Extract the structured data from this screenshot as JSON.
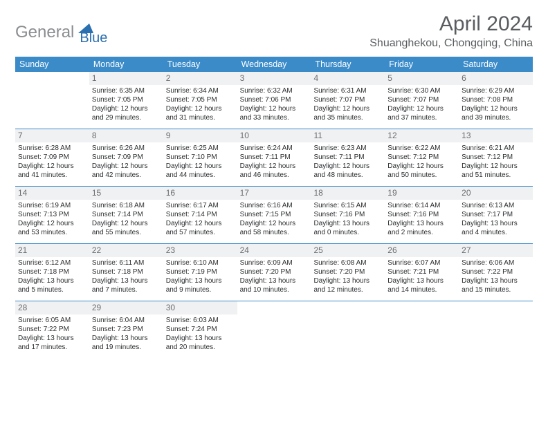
{
  "logo": {
    "first": "General",
    "second": "Blue"
  },
  "title": "April 2024",
  "location": "Shuanghekou, Chongqing, China",
  "colors": {
    "header_bg": "#3b8bc9",
    "header_text": "#ffffff",
    "daynum_bg": "#f0f1f2",
    "daynum_text": "#6a6d70",
    "body_text": "#2a2c2e",
    "title_text": "#5a5d60",
    "logo_gray": "#8a8d90",
    "logo_blue": "#2a6fb0"
  },
  "weekdays": [
    "Sunday",
    "Monday",
    "Tuesday",
    "Wednesday",
    "Thursday",
    "Friday",
    "Saturday"
  ],
  "weeks": [
    [
      null,
      {
        "n": "1",
        "sr": "Sunrise: 6:35 AM",
        "ss": "Sunset: 7:05 PM",
        "d1": "Daylight: 12 hours",
        "d2": "and 29 minutes."
      },
      {
        "n": "2",
        "sr": "Sunrise: 6:34 AM",
        "ss": "Sunset: 7:05 PM",
        "d1": "Daylight: 12 hours",
        "d2": "and 31 minutes."
      },
      {
        "n": "3",
        "sr": "Sunrise: 6:32 AM",
        "ss": "Sunset: 7:06 PM",
        "d1": "Daylight: 12 hours",
        "d2": "and 33 minutes."
      },
      {
        "n": "4",
        "sr": "Sunrise: 6:31 AM",
        "ss": "Sunset: 7:07 PM",
        "d1": "Daylight: 12 hours",
        "d2": "and 35 minutes."
      },
      {
        "n": "5",
        "sr": "Sunrise: 6:30 AM",
        "ss": "Sunset: 7:07 PM",
        "d1": "Daylight: 12 hours",
        "d2": "and 37 minutes."
      },
      {
        "n": "6",
        "sr": "Sunrise: 6:29 AM",
        "ss": "Sunset: 7:08 PM",
        "d1": "Daylight: 12 hours",
        "d2": "and 39 minutes."
      }
    ],
    [
      {
        "n": "7",
        "sr": "Sunrise: 6:28 AM",
        "ss": "Sunset: 7:09 PM",
        "d1": "Daylight: 12 hours",
        "d2": "and 41 minutes."
      },
      {
        "n": "8",
        "sr": "Sunrise: 6:26 AM",
        "ss": "Sunset: 7:09 PM",
        "d1": "Daylight: 12 hours",
        "d2": "and 42 minutes."
      },
      {
        "n": "9",
        "sr": "Sunrise: 6:25 AM",
        "ss": "Sunset: 7:10 PM",
        "d1": "Daylight: 12 hours",
        "d2": "and 44 minutes."
      },
      {
        "n": "10",
        "sr": "Sunrise: 6:24 AM",
        "ss": "Sunset: 7:11 PM",
        "d1": "Daylight: 12 hours",
        "d2": "and 46 minutes."
      },
      {
        "n": "11",
        "sr": "Sunrise: 6:23 AM",
        "ss": "Sunset: 7:11 PM",
        "d1": "Daylight: 12 hours",
        "d2": "and 48 minutes."
      },
      {
        "n": "12",
        "sr": "Sunrise: 6:22 AM",
        "ss": "Sunset: 7:12 PM",
        "d1": "Daylight: 12 hours",
        "d2": "and 50 minutes."
      },
      {
        "n": "13",
        "sr": "Sunrise: 6:21 AM",
        "ss": "Sunset: 7:12 PM",
        "d1": "Daylight: 12 hours",
        "d2": "and 51 minutes."
      }
    ],
    [
      {
        "n": "14",
        "sr": "Sunrise: 6:19 AM",
        "ss": "Sunset: 7:13 PM",
        "d1": "Daylight: 12 hours",
        "d2": "and 53 minutes."
      },
      {
        "n": "15",
        "sr": "Sunrise: 6:18 AM",
        "ss": "Sunset: 7:14 PM",
        "d1": "Daylight: 12 hours",
        "d2": "and 55 minutes."
      },
      {
        "n": "16",
        "sr": "Sunrise: 6:17 AM",
        "ss": "Sunset: 7:14 PM",
        "d1": "Daylight: 12 hours",
        "d2": "and 57 minutes."
      },
      {
        "n": "17",
        "sr": "Sunrise: 6:16 AM",
        "ss": "Sunset: 7:15 PM",
        "d1": "Daylight: 12 hours",
        "d2": "and 58 minutes."
      },
      {
        "n": "18",
        "sr": "Sunrise: 6:15 AM",
        "ss": "Sunset: 7:16 PM",
        "d1": "Daylight: 13 hours",
        "d2": "and 0 minutes."
      },
      {
        "n": "19",
        "sr": "Sunrise: 6:14 AM",
        "ss": "Sunset: 7:16 PM",
        "d1": "Daylight: 13 hours",
        "d2": "and 2 minutes."
      },
      {
        "n": "20",
        "sr": "Sunrise: 6:13 AM",
        "ss": "Sunset: 7:17 PM",
        "d1": "Daylight: 13 hours",
        "d2": "and 4 minutes."
      }
    ],
    [
      {
        "n": "21",
        "sr": "Sunrise: 6:12 AM",
        "ss": "Sunset: 7:18 PM",
        "d1": "Daylight: 13 hours",
        "d2": "and 5 minutes."
      },
      {
        "n": "22",
        "sr": "Sunrise: 6:11 AM",
        "ss": "Sunset: 7:18 PM",
        "d1": "Daylight: 13 hours",
        "d2": "and 7 minutes."
      },
      {
        "n": "23",
        "sr": "Sunrise: 6:10 AM",
        "ss": "Sunset: 7:19 PM",
        "d1": "Daylight: 13 hours",
        "d2": "and 9 minutes."
      },
      {
        "n": "24",
        "sr": "Sunrise: 6:09 AM",
        "ss": "Sunset: 7:20 PM",
        "d1": "Daylight: 13 hours",
        "d2": "and 10 minutes."
      },
      {
        "n": "25",
        "sr": "Sunrise: 6:08 AM",
        "ss": "Sunset: 7:20 PM",
        "d1": "Daylight: 13 hours",
        "d2": "and 12 minutes."
      },
      {
        "n": "26",
        "sr": "Sunrise: 6:07 AM",
        "ss": "Sunset: 7:21 PM",
        "d1": "Daylight: 13 hours",
        "d2": "and 14 minutes."
      },
      {
        "n": "27",
        "sr": "Sunrise: 6:06 AM",
        "ss": "Sunset: 7:22 PM",
        "d1": "Daylight: 13 hours",
        "d2": "and 15 minutes."
      }
    ],
    [
      {
        "n": "28",
        "sr": "Sunrise: 6:05 AM",
        "ss": "Sunset: 7:22 PM",
        "d1": "Daylight: 13 hours",
        "d2": "and 17 minutes."
      },
      {
        "n": "29",
        "sr": "Sunrise: 6:04 AM",
        "ss": "Sunset: 7:23 PM",
        "d1": "Daylight: 13 hours",
        "d2": "and 19 minutes."
      },
      {
        "n": "30",
        "sr": "Sunrise: 6:03 AM",
        "ss": "Sunset: 7:24 PM",
        "d1": "Daylight: 13 hours",
        "d2": "and 20 minutes."
      },
      null,
      null,
      null,
      null
    ]
  ]
}
